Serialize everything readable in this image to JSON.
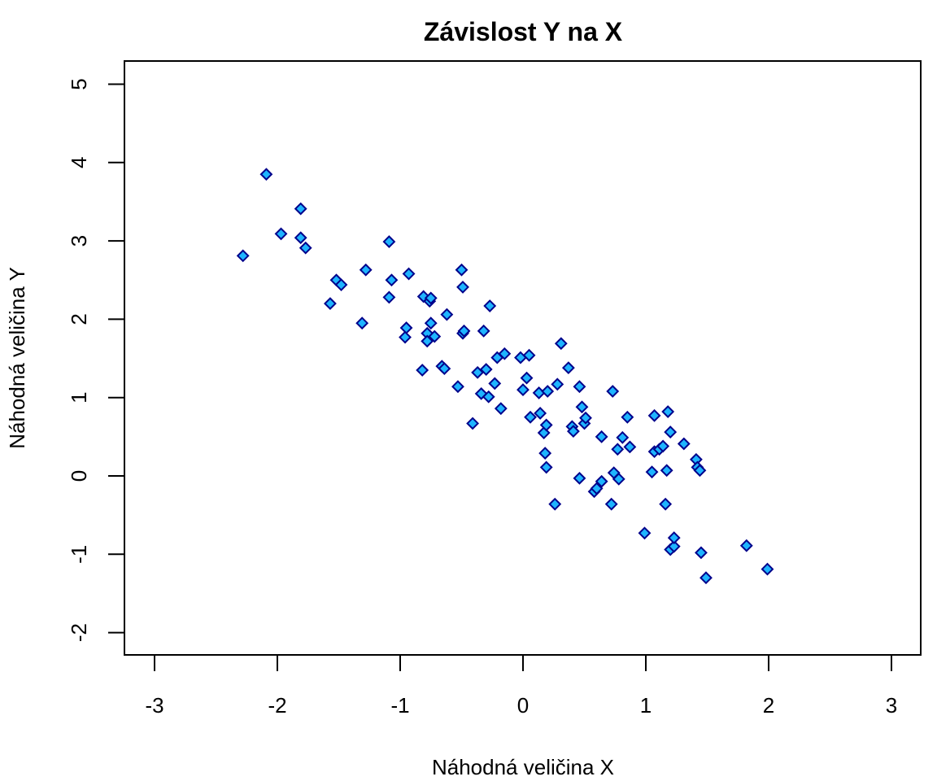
{
  "chart_data": {
    "type": "scatter",
    "title": "Závislost Y na X",
    "xlabel": "Náhodná veličina X",
    "ylabel": "Náhodná veličina Y",
    "xlim": [
      -3.24,
      3.24
    ],
    "ylim": [
      -2.28,
      5.3
    ],
    "xticks": [
      -3,
      -2,
      -1,
      0,
      1,
      2,
      3
    ],
    "yticks": [
      -2,
      -1,
      0,
      1,
      2,
      3,
      4,
      5
    ],
    "grid": false,
    "marker": "diamond",
    "colors": {
      "fill": "#1EB4FF",
      "stroke": "#00008B"
    },
    "points": [
      [
        -2.28,
        2.81
      ],
      [
        -2.09,
        3.85
      ],
      [
        -1.97,
        3.09
      ],
      [
        -1.81,
        3.41
      ],
      [
        -1.81,
        3.04
      ],
      [
        -1.77,
        2.91
      ],
      [
        -1.57,
        2.2
      ],
      [
        -1.52,
        2.5
      ],
      [
        -1.48,
        2.44
      ],
      [
        -1.31,
        1.95
      ],
      [
        -1.28,
        2.63
      ],
      [
        -1.09,
        2.99
      ],
      [
        -1.09,
        2.28
      ],
      [
        -1.07,
        2.5
      ],
      [
        -0.95,
        1.89
      ],
      [
        -0.96,
        1.77
      ],
      [
        -0.93,
        2.58
      ],
      [
        -0.82,
        1.35
      ],
      [
        -0.81,
        2.29
      ],
      [
        -0.78,
        1.82
      ],
      [
        -0.78,
        1.72
      ],
      [
        -0.76,
        2.23
      ],
      [
        -0.75,
        2.27
      ],
      [
        -0.75,
        1.95
      ],
      [
        -0.72,
        1.78
      ],
      [
        -0.66,
        1.4
      ],
      [
        -0.64,
        1.37
      ],
      [
        -0.62,
        2.06
      ],
      [
        -0.53,
        1.14
      ],
      [
        -0.5,
        2.63
      ],
      [
        -0.49,
        2.41
      ],
      [
        -0.49,
        1.82
      ],
      [
        -0.48,
        1.85
      ],
      [
        -0.41,
        0.67
      ],
      [
        -0.37,
        1.32
      ],
      [
        -0.34,
        1.05
      ],
      [
        -0.32,
        1.85
      ],
      [
        -0.3,
        1.36
      ],
      [
        -0.28,
        1.01
      ],
      [
        -0.27,
        2.17
      ],
      [
        -0.23,
        1.18
      ],
      [
        -0.21,
        1.51
      ],
      [
        -0.18,
        0.86
      ],
      [
        -0.15,
        1.56
      ],
      [
        -0.02,
        1.51
      ],
      [
        0.0,
        1.1
      ],
      [
        0.03,
        1.25
      ],
      [
        0.05,
        1.54
      ],
      [
        0.06,
        0.75
      ],
      [
        0.13,
        1.06
      ],
      [
        0.14,
        0.8
      ],
      [
        0.17,
        0.55
      ],
      [
        0.19,
        0.65
      ],
      [
        0.18,
        0.29
      ],
      [
        0.19,
        0.11
      ],
      [
        0.2,
        1.08
      ],
      [
        0.26,
        -0.36
      ],
      [
        0.28,
        1.17
      ],
      [
        0.31,
        1.69
      ],
      [
        0.37,
        1.38
      ],
      [
        0.4,
        0.63
      ],
      [
        0.41,
        0.57
      ],
      [
        0.46,
        1.14
      ],
      [
        0.46,
        -0.03
      ],
      [
        0.48,
        0.88
      ],
      [
        0.5,
        0.67
      ],
      [
        0.51,
        0.74
      ],
      [
        0.58,
        -0.2
      ],
      [
        0.6,
        -0.16
      ],
      [
        0.64,
        0.5
      ],
      [
        0.64,
        -0.07
      ],
      [
        0.72,
        -0.36
      ],
      [
        0.73,
        1.08
      ],
      [
        0.74,
        0.04
      ],
      [
        0.77,
        0.34
      ],
      [
        0.78,
        -0.04
      ],
      [
        0.81,
        0.49
      ],
      [
        0.85,
        0.75
      ],
      [
        0.87,
        0.37
      ],
      [
        0.99,
        -0.73
      ],
      [
        1.05,
        0.05
      ],
      [
        1.07,
        0.31
      ],
      [
        1.07,
        0.77
      ],
      [
        1.11,
        0.34
      ],
      [
        1.14,
        0.38
      ],
      [
        1.17,
        0.07
      ],
      [
        1.16,
        -0.36
      ],
      [
        1.18,
        0.82
      ],
      [
        1.2,
        -0.94
      ],
      [
        1.2,
        0.56
      ],
      [
        1.23,
        -0.9
      ],
      [
        1.23,
        -0.79
      ],
      [
        1.31,
        0.41
      ],
      [
        1.41,
        0.21
      ],
      [
        1.42,
        0.11
      ],
      [
        1.44,
        0.07
      ],
      [
        1.45,
        -0.98
      ],
      [
        1.49,
        -1.3
      ],
      [
        1.82,
        -0.89
      ],
      [
        1.99,
        -1.19
      ]
    ]
  }
}
